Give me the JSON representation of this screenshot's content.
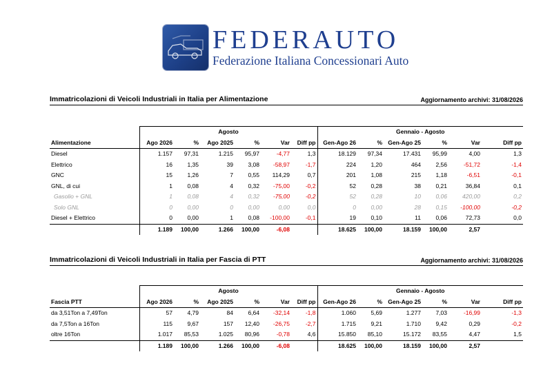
{
  "brand": {
    "name": "FEDERAUTO",
    "subtitle": "Federazione Italiana Concessionari Auto"
  },
  "colors": {
    "brand": "#1f3f8f",
    "negative": "#e00000"
  },
  "section1": {
    "title": "Immatricolazioni di Veicoli Industriali in Italia per Alimentazione",
    "update": "Aggiornamento archivi: 31/08/2026",
    "group_month": "Agosto",
    "group_ytd": "Gennaio - Agosto",
    "headers": [
      "Alimentazione",
      "Ago 2026",
      "%",
      "Ago 2025",
      "%",
      "Var",
      "Diff pp",
      "Gen-Ago 26",
      "%",
      "Gen-Ago 25",
      "%",
      "Var",
      "Diff pp"
    ],
    "rows": [
      {
        "label": "Diesel",
        "c": [
          "1.157",
          "97,31",
          "1.215",
          "95,97",
          "-4,77",
          "1,3",
          "18.129",
          "97,34",
          "17.431",
          "95,99",
          "4,00",
          "1,3"
        ],
        "neg": [
          false,
          false,
          false,
          false,
          true,
          false,
          false,
          false,
          false,
          false,
          false,
          false
        ],
        "style": ""
      },
      {
        "label": "Elettrico",
        "c": [
          "16",
          "1,35",
          "39",
          "3,08",
          "-58,97",
          "-1,7",
          "224",
          "1,20",
          "464",
          "2,56",
          "-51,72",
          "-1,4"
        ],
        "neg": [
          false,
          false,
          false,
          false,
          true,
          true,
          false,
          false,
          false,
          false,
          true,
          true
        ],
        "style": ""
      },
      {
        "label": "GNC",
        "c": [
          "15",
          "1,26",
          "7",
          "0,55",
          "114,29",
          "0,7",
          "201",
          "1,08",
          "215",
          "1,18",
          "-6,51",
          "-0,1"
        ],
        "neg": [
          false,
          false,
          false,
          false,
          false,
          false,
          false,
          false,
          false,
          false,
          true,
          true
        ],
        "style": ""
      },
      {
        "label": "GNL, di cui",
        "c": [
          "1",
          "0,08",
          "4",
          "0,32",
          "-75,00",
          "-0,2",
          "52",
          "0,28",
          "38",
          "0,21",
          "36,84",
          "0,1"
        ],
        "neg": [
          false,
          false,
          false,
          false,
          true,
          true,
          false,
          false,
          false,
          false,
          false,
          false
        ],
        "style": ""
      },
      {
        "label": "Gasolio + GNL",
        "c": [
          "1",
          "0,08",
          "4",
          "0,32",
          "-75,00",
          "-0,2",
          "52",
          "0,28",
          "10",
          "0,06",
          "420,00",
          "0,2"
        ],
        "neg": [
          false,
          false,
          false,
          false,
          true,
          true,
          false,
          false,
          false,
          false,
          false,
          false
        ],
        "style": "sub"
      },
      {
        "label": "Solo GNL",
        "c": [
          "0",
          "0,00",
          "0",
          "0,00",
          "0,00",
          "0,0",
          "0",
          "0,00",
          "28",
          "0,15",
          "-100,00",
          "-0,2"
        ],
        "neg": [
          false,
          false,
          false,
          false,
          false,
          false,
          false,
          false,
          false,
          false,
          true,
          true
        ],
        "style": "sub"
      },
      {
        "label": "Diesel + Elettrico",
        "c": [
          "0",
          "0,00",
          "1",
          "0,08",
          "-100,00",
          "-0,1",
          "19",
          "0,10",
          "11",
          "0,06",
          "72,73",
          "0,0"
        ],
        "neg": [
          false,
          false,
          false,
          false,
          true,
          true,
          false,
          false,
          false,
          false,
          false,
          false
        ],
        "style": ""
      }
    ],
    "total": {
      "c": [
        "1.189",
        "100,00",
        "1.266",
        "100,00",
        "-6,08",
        "",
        "18.625",
        "100,00",
        "18.159",
        "100,00",
        "2,57",
        ""
      ],
      "neg": [
        false,
        false,
        false,
        false,
        true,
        false,
        false,
        false,
        false,
        false,
        false,
        false
      ]
    }
  },
  "section2": {
    "title": "Immatricolazioni di Veicoli Industriali in Italia per Fascia di PTT",
    "update": "Aggiornamento archivi: 31/08/2026",
    "group_month": "Agosto",
    "group_ytd": "Gennaio - Agosto",
    "headers": [
      "Fascia PTT",
      "Ago 2026",
      "%",
      "Ago 2025",
      "%",
      "Var",
      "Diff pp",
      "Gen-Ago 26",
      "%",
      "Gen-Ago 25",
      "%",
      "Var",
      "Diff pp"
    ],
    "rows": [
      {
        "label": "da 3,51Ton a 7,49Ton",
        "c": [
          "57",
          "4,79",
          "84",
          "6,64",
          "-32,14",
          "-1,8",
          "1.060",
          "5,69",
          "1.277",
          "7,03",
          "-16,99",
          "-1,3"
        ],
        "neg": [
          false,
          false,
          false,
          false,
          true,
          true,
          false,
          false,
          false,
          false,
          true,
          true
        ],
        "style": ""
      },
      {
        "label": "da 7,5Ton a 16Ton",
        "c": [
          "115",
          "9,67",
          "157",
          "12,40",
          "-26,75",
          "-2,7",
          "1.715",
          "9,21",
          "1.710",
          "9,42",
          "0,29",
          "-0,2"
        ],
        "neg": [
          false,
          false,
          false,
          false,
          true,
          true,
          false,
          false,
          false,
          false,
          false,
          true
        ],
        "style": ""
      },
      {
        "label": "oltre 16Ton",
        "c": [
          "1.017",
          "85,53",
          "1.025",
          "80,96",
          "-0,78",
          "4,6",
          "15.850",
          "85,10",
          "15.172",
          "83,55",
          "4,47",
          "1,5"
        ],
        "neg": [
          false,
          false,
          false,
          false,
          true,
          false,
          false,
          false,
          false,
          false,
          false,
          false
        ],
        "style": ""
      }
    ],
    "total": {
      "c": [
        "1.189",
        "100,00",
        "1.266",
        "100,00",
        "-6,08",
        "",
        "18.625",
        "100,00",
        "18.159",
        "100,00",
        "2,57",
        ""
      ],
      "neg": [
        false,
        false,
        false,
        false,
        true,
        false,
        false,
        false,
        false,
        false,
        false,
        false
      ]
    }
  }
}
